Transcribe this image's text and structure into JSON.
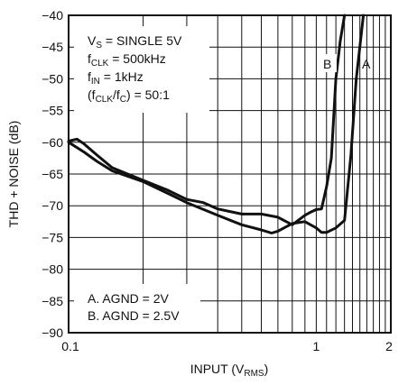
{
  "chart_data": {
    "type": "line",
    "xlabel": "INPUT (V",
    "xlabel_sub": "RMS",
    "xlabel_end": ")",
    "ylabel": "THD + NOISE (dB)",
    "xscale": "log",
    "xlim": [
      0.1,
      2
    ],
    "ylim": [
      -90,
      -40
    ],
    "x_ticks": [
      0.1,
      1,
      2
    ],
    "x_tick_labels": [
      "0.1",
      "1",
      "2"
    ],
    "y_ticks": [
      -90,
      -85,
      -80,
      -75,
      -70,
      -65,
      -60,
      -55,
      -50,
      -45,
      -40
    ],
    "y_tick_labels": [
      "−90",
      "−85",
      "−80",
      "−75",
      "−70",
      "−65",
      "−60",
      "−55",
      "−50",
      "−45",
      "−40"
    ],
    "grid": true,
    "conditions": [
      {
        "pre": "V",
        "sub": "S",
        "post": " = SINGLE 5V"
      },
      {
        "pre": "f",
        "sub": "CLK",
        "post": " = 500kHz"
      },
      {
        "pre": "f",
        "sub": "IN",
        "post": " = 1kHz"
      },
      {
        "pre": "(f",
        "sub": "CLK",
        "mid": "/f",
        "sub2": "C",
        "post": ") = 50:1"
      }
    ],
    "notes": [
      "A. AGND = 2V",
      "B. AGND = 2.5V"
    ],
    "series": [
      {
        "name": "A",
        "x": [
          0.1,
          0.115,
          0.13,
          0.15,
          0.2,
          0.25,
          0.3,
          0.4,
          0.5,
          0.6,
          0.66,
          0.7,
          0.8,
          0.9,
          1.0,
          1.05,
          1.1,
          1.2,
          1.3,
          1.38,
          1.45,
          1.55
        ],
        "y": [
          -60,
          -61.5,
          -63,
          -64.5,
          -66.2,
          -68,
          -69.5,
          -71.5,
          -73,
          -73.8,
          -74.3,
          -74,
          -72.8,
          -72.5,
          -73.5,
          -74.2,
          -74.2,
          -73.5,
          -72.3,
          -62,
          -50,
          -40
        ]
      },
      {
        "name": "B",
        "x": [
          0.1,
          0.108,
          0.115,
          0.13,
          0.15,
          0.2,
          0.25,
          0.3,
          0.35,
          0.4,
          0.5,
          0.6,
          0.7,
          0.8,
          0.9,
          0.95,
          1.0,
          1.05,
          1.1,
          1.15,
          1.2,
          1.25,
          1.3
        ],
        "y": [
          -59.8,
          -59.5,
          -60.2,
          -62,
          -64,
          -66,
          -67.5,
          -69,
          -69.5,
          -70.5,
          -71.3,
          -71.3,
          -71.8,
          -73,
          -71.5,
          -71,
          -70.6,
          -70.5,
          -67,
          -62.5,
          -50,
          -44,
          -40
        ]
      }
    ],
    "curve_labels": [
      "A",
      "B"
    ]
  }
}
